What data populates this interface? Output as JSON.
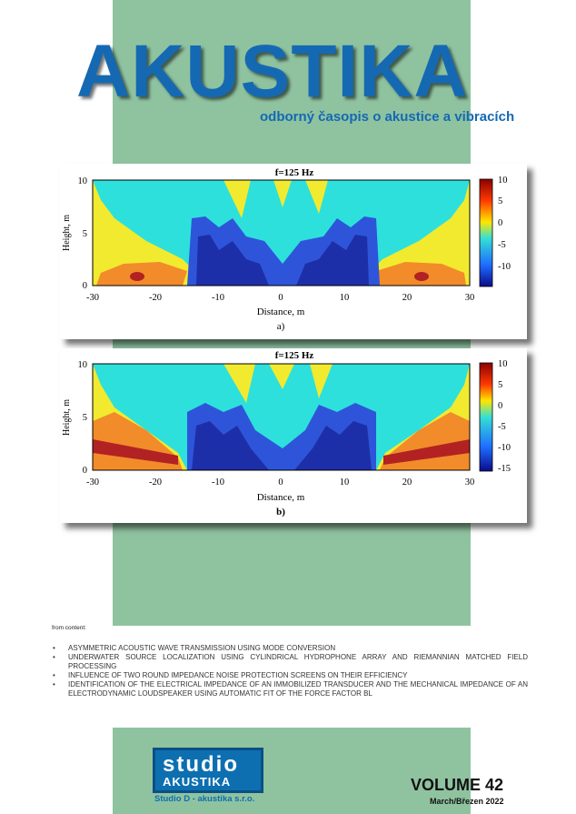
{
  "cover": {
    "title": "AKUSTIKA",
    "subtitle": "odborný časopis o akustice a vibracích"
  },
  "figures": [
    {
      "title": "f=125 Hz",
      "xlabel": "Distance, m",
      "ylabel": "Height, m",
      "caption": "a)",
      "x_ticks": [
        "-30",
        "-20",
        "-10",
        "0",
        "10",
        "20",
        "30"
      ],
      "y_ticks": [
        "0",
        "5",
        "10"
      ],
      "colorbar_ticks": [
        "10",
        "5",
        "0",
        "-5",
        "-10"
      ]
    },
    {
      "title": "f=125 Hz",
      "xlabel": "Distance, m",
      "ylabel": "Height, m",
      "caption": "b)",
      "x_ticks": [
        "-30",
        "-20",
        "-10",
        "0",
        "10",
        "20",
        "30"
      ],
      "y_ticks": [
        "0",
        "5",
        "10"
      ],
      "colorbar_ticks": [
        "10",
        "5",
        "0",
        "-5",
        "-10",
        "-15"
      ]
    }
  ],
  "contents": {
    "heading": "from content:",
    "items": [
      "ASYMMETRIC ACOUSTIC WAVE TRANSMISSION USING MODE CONVERSION",
      "UNDERWATER SOURCE LOCALIZATION USING CYLINDRICAL HYDROPHONE ARRAY AND RIEMANNIAN MATCHED FIELD PROCESSING",
      "INFLUENCE OF TWO ROUND IMPEDANCE NOISE PROTECTION SCREENS ON THEIR EFFICIENCY",
      "IDENTIFICATION OF THE ELECTRICAL IMPEDANCE OF AN IMMOBILIZED TRANSDUCER AND THE MECHANICAL IMPEDANCE OF AN ELECTRODYNAMIC LOUDSPEAKER USING AUTOMATIC FIT OF THE FORCE FACTOR BL"
    ]
  },
  "publisher": {
    "logo_line1": "studio",
    "logo_line2": "AKUSTIKA",
    "name": "Studio D - akustika s.r.o."
  },
  "issue": {
    "volume": "VOLUME 42",
    "date": "March/Březen 2022"
  },
  "colors": {
    "brand_blue": "#1569b3",
    "band_green": "#8fc3a0"
  }
}
